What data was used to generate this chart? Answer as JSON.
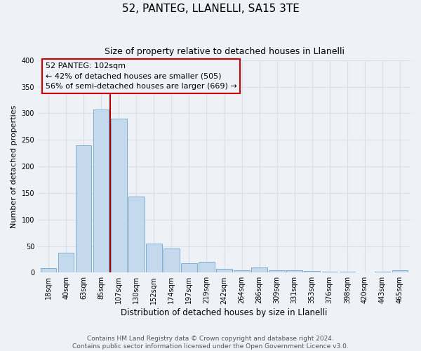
{
  "title": "52, PANTEG, LLANELLI, SA15 3TE",
  "subtitle": "Size of property relative to detached houses in Llanelli",
  "xlabel": "Distribution of detached houses by size in Llanelli",
  "ylabel": "Number of detached properties",
  "footer_line1": "Contains HM Land Registry data © Crown copyright and database right 2024.",
  "footer_line2": "Contains public sector information licensed under the Open Government Licence v3.0.",
  "bar_labels": [
    "18sqm",
    "40sqm",
    "63sqm",
    "85sqm",
    "107sqm",
    "130sqm",
    "152sqm",
    "174sqm",
    "197sqm",
    "219sqm",
    "242sqm",
    "264sqm",
    "286sqm",
    "309sqm",
    "331sqm",
    "353sqm",
    "376sqm",
    "398sqm",
    "420sqm",
    "443sqm",
    "465sqm"
  ],
  "bar_values": [
    8,
    38,
    240,
    307,
    290,
    143,
    55,
    45,
    18,
    20,
    7,
    5,
    10,
    5,
    4,
    3,
    2,
    2,
    1,
    2,
    4
  ],
  "bar_color": "#c5d9ed",
  "bar_edge_color": "#7bafd4",
  "ylim": [
    0,
    400
  ],
  "yticks": [
    0,
    50,
    100,
    150,
    200,
    250,
    300,
    350,
    400
  ],
  "vline_index": 4,
  "vline_color": "#aa0000",
  "annotation_title": "52 PANTEG: 102sqm",
  "annotation_line1": "← 42% of detached houses are smaller (505)",
  "annotation_line2": "56% of semi-detached houses are larger (669) →",
  "annotation_box_edgecolor": "#cc0000",
  "background_color": "#eef2f7",
  "grid_color": "#d8dfe8",
  "title_fontsize": 11,
  "subtitle_fontsize": 9,
  "ylabel_fontsize": 8,
  "xlabel_fontsize": 8.5,
  "tick_fontsize": 7,
  "annotation_fontsize": 8,
  "footer_fontsize": 6.5
}
